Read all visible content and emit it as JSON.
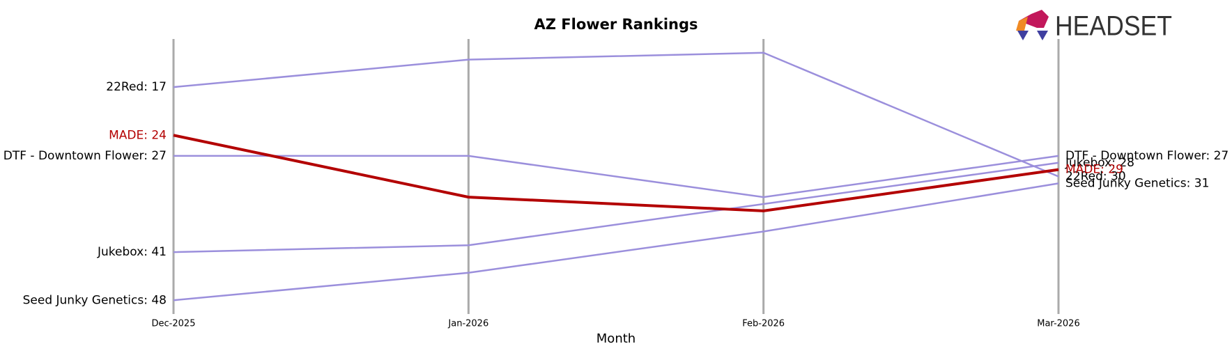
{
  "chart_data": {
    "type": "bump",
    "title": "AZ Flower Rankings",
    "x_label": "Month",
    "logo": "HEADSET",
    "categories": [
      "Dec-2025",
      "Jan-2026",
      "Feb-2026",
      "Mar-2026"
    ],
    "ylim": [
      50,
      10
    ],
    "series": [
      {
        "name": "22Red",
        "color": "#9b8fdc",
        "values": [
          17,
          13,
          12,
          30
        ],
        "value_labels": [
          "22Red: 17",
          null,
          null,
          "22Red: 30"
        ]
      },
      {
        "name": "MADE",
        "color": "#b30000",
        "values": [
          24,
          33,
          35,
          29
        ],
        "value_labels": [
          "MADE: 24",
          null,
          null,
          "MADE: 29"
        ]
      },
      {
        "name": "DTF - Downtown Flower",
        "color": "#9b8fdc",
        "values": [
          27,
          27,
          33,
          27
        ],
        "value_labels": [
          "DTF - Downtown Flower: 27",
          null,
          null,
          "DTF - Downtown Flower: 27"
        ]
      },
      {
        "name": "Jukebox",
        "color": "#9b8fdc",
        "values": [
          41,
          40,
          34,
          28
        ],
        "value_labels": [
          "Jukebox: 41",
          null,
          null,
          "Jukebox: 28"
        ]
      },
      {
        "name": "Seed Junky Genetics",
        "color": "#9b8fdc",
        "values": [
          48,
          44,
          38,
          31
        ],
        "value_labels": [
          "Seed Junky Genetics: 48",
          null,
          null,
          "Seed Junky Genetics: 31"
        ]
      }
    ]
  }
}
